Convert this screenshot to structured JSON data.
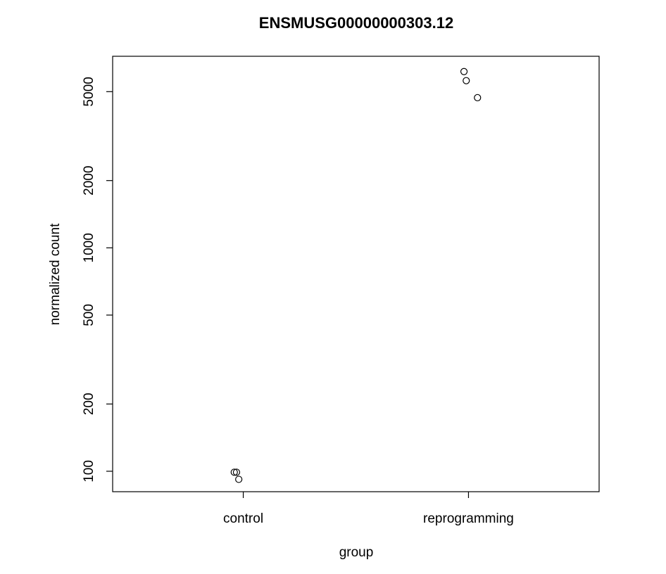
{
  "chart_data": {
    "type": "scatter",
    "title": "ENSMUSG00000000303.12",
    "xlabel": "group",
    "ylabel": "normalized count",
    "categories": [
      "control",
      "reprogramming"
    ],
    "y_scale": "log",
    "ylim": [
      81,
      7200
    ],
    "y_ticks": [
      100,
      200,
      500,
      1000,
      2000,
      5000
    ],
    "y_tick_labels": [
      "100",
      "200",
      "500",
      "1000",
      "2000",
      "5000"
    ],
    "grid": false,
    "legend": "none",
    "points": [
      {
        "category": "control",
        "jitter": -0.04,
        "value": 99
      },
      {
        "category": "control",
        "jitter": -0.03,
        "value": 99
      },
      {
        "category": "control",
        "jitter": -0.02,
        "value": 92
      },
      {
        "category": "reprogramming",
        "jitter": -0.02,
        "value": 6150
      },
      {
        "category": "reprogramming",
        "jitter": -0.01,
        "value": 5600
      },
      {
        "category": "reprogramming",
        "jitter": 0.04,
        "value": 4700
      }
    ]
  }
}
